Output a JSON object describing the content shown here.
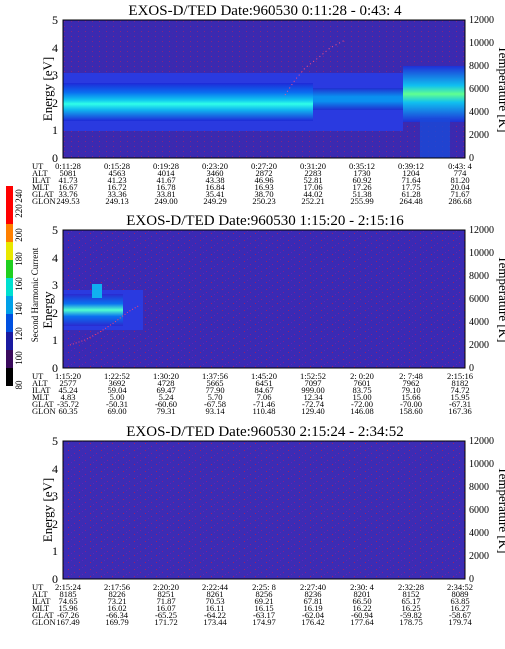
{
  "chart_data": [
    {
      "type": "heatmap",
      "title": "EXOS-D/TED   Date:960530  0:11:28 - 0:43: 4",
      "ylabel": "Energy [eV]",
      "y2label": "Temperature [K]",
      "ylim": [
        0,
        5
      ],
      "yticks": [
        "0",
        "1",
        "2",
        "3",
        "4",
        "5"
      ],
      "y2lim": [
        0,
        12000
      ],
      "y2ticks": [
        "0",
        "2000",
        "4000",
        "6000",
        "8000",
        "10000",
        "12000"
      ],
      "rows": [
        {
          "label": "UT",
          "values": [
            "0:11:28",
            "0:15:28",
            "0:19:28",
            "0:23:20",
            "0:27:20",
            "0:31:20",
            "0:35:12",
            "0:39:12",
            "0:43: 4"
          ]
        },
        {
          "label": "ALT",
          "values": [
            "5081",
            "4563",
            "4014",
            "3460",
            "2872",
            "2283",
            "1730",
            "1204",
            "774"
          ]
        },
        {
          "label": "ILAT",
          "values": [
            "41.73",
            "41.23",
            "41.67",
            "43.38",
            "46.96",
            "52.81",
            "60.92",
            "71.64",
            "81.20"
          ]
        },
        {
          "label": "MLT",
          "values": [
            "16.67",
            "16.72",
            "16.78",
            "16.84",
            "16.93",
            "17.06",
            "17.26",
            "17.75",
            "20.04"
          ]
        },
        {
          "label": "GLAT",
          "values": [
            "33.76",
            "33.36",
            "33.81",
            "35.41",
            "38.70",
            "44.02",
            "51.38",
            "61.28",
            "71.67"
          ]
        },
        {
          "label": "GLON",
          "values": [
            "249.53",
            "249.13",
            "249.00",
            "249.29",
            "250.23",
            "252.21",
            "255.99",
            "264.48",
            "286.68"
          ]
        }
      ]
    },
    {
      "type": "heatmap",
      "title": "EXOS-D/TED   Date:960530  1:15:20 - 2:15:16",
      "ylabel": "Energy",
      "y2label": "Temperature [K]",
      "ylim": [
        0,
        5
      ],
      "yticks": [
        "0",
        "1",
        "2",
        "3",
        "4",
        "5"
      ],
      "y2lim": [
        0,
        12000
      ],
      "y2ticks": [
        "0",
        "2000",
        "4000",
        "6000",
        "8000",
        "10000",
        "12000"
      ],
      "colorbar": {
        "label": "Second Harmonic Current",
        "ticks": [
          "80",
          "100",
          "120",
          "140",
          "160",
          "180",
          "200",
          "220",
          "240"
        ],
        "colors": [
          "#000000",
          "#3a0a5c",
          "#1a1aa0",
          "#0050e0",
          "#00a0e8",
          "#00e0d0",
          "#20d020",
          "#e8e800",
          "#ff8000",
          "#ff0000"
        ]
      },
      "rows": [
        {
          "label": "UT",
          "values": [
            "1:15:20",
            "1:22:52",
            "1:30:20",
            "1:37:56",
            "1:45:20",
            "1:52:52",
            "2: 0:20",
            "2: 7:48",
            "2:15:16"
          ]
        },
        {
          "label": "ALT",
          "values": [
            "2577",
            "3692",
            "4728",
            "5665",
            "6451",
            "7097",
            "7601",
            "7962",
            "8182"
          ]
        },
        {
          "label": "ILAT",
          "values": [
            "45.24",
            "59.04",
            "69.47",
            "77.90",
            "84.67",
            "999.00",
            "83.75",
            "79.10",
            "74.72"
          ]
        },
        {
          "label": "MLT",
          "values": [
            "4.83",
            "5.00",
            "5.24",
            "5.70",
            "7.06",
            "12.34",
            "15.00",
            "15.66",
            "15.95"
          ]
        },
        {
          "label": "GLAT",
          "values": [
            "-35.72",
            "-50.31",
            "-60.60",
            "-67.58",
            "-71.46",
            "-72.74",
            "-72.00",
            "-70.00",
            "-67.31"
          ]
        },
        {
          "label": "GLON",
          "values": [
            "60.35",
            "69.00",
            "79.31",
            "93.14",
            "110.48",
            "129.40",
            "146.08",
            "158.60",
            "167.36"
          ]
        }
      ]
    },
    {
      "type": "heatmap",
      "title": "EXOS-D/TED   Date:960530  2:15:24 - 2:34:52",
      "ylabel": "Energy [eV]",
      "y2label": "Temperature [K]",
      "ylim": [
        0,
        5
      ],
      "yticks": [
        "0",
        "1",
        "2",
        "3",
        "4",
        "5"
      ],
      "y2lim": [
        0,
        12000
      ],
      "y2ticks": [
        "0",
        "2000",
        "4000",
        "6000",
        "8000",
        "10000",
        "12000"
      ],
      "rows": [
        {
          "label": "UT",
          "values": [
            "2:15:24",
            "2:17:56",
            "2:20:20",
            "2:22:44",
            "2:25: 8",
            "2:27:40",
            "2:30: 4",
            "2:32:28",
            "2:34:52"
          ]
        },
        {
          "label": "ALT",
          "values": [
            "8185",
            "8226",
            "8251",
            "8261",
            "8256",
            "8236",
            "8201",
            "8152",
            "8089"
          ]
        },
        {
          "label": "ILAT",
          "values": [
            "74.65",
            "73.21",
            "71.87",
            "70.53",
            "69.21",
            "67.81",
            "66.50",
            "65.17",
            "63.85"
          ]
        },
        {
          "label": "MLT",
          "values": [
            "15.96",
            "16.02",
            "16.07",
            "16.11",
            "16.15",
            "16.19",
            "16.22",
            "16.25",
            "16.27"
          ]
        },
        {
          "label": "GLAT",
          "values": [
            "-67.26",
            "-66.34",
            "-65.25",
            "-64.22",
            "-63.17",
            "-62.04",
            "-60.94",
            "-59.82",
            "-58.67"
          ]
        },
        {
          "label": "GLON",
          "values": [
            "167.49",
            "169.79",
            "171.72",
            "173.44",
            "174.97",
            "176.42",
            "177.64",
            "178.75",
            "179.74"
          ]
        }
      ]
    }
  ]
}
